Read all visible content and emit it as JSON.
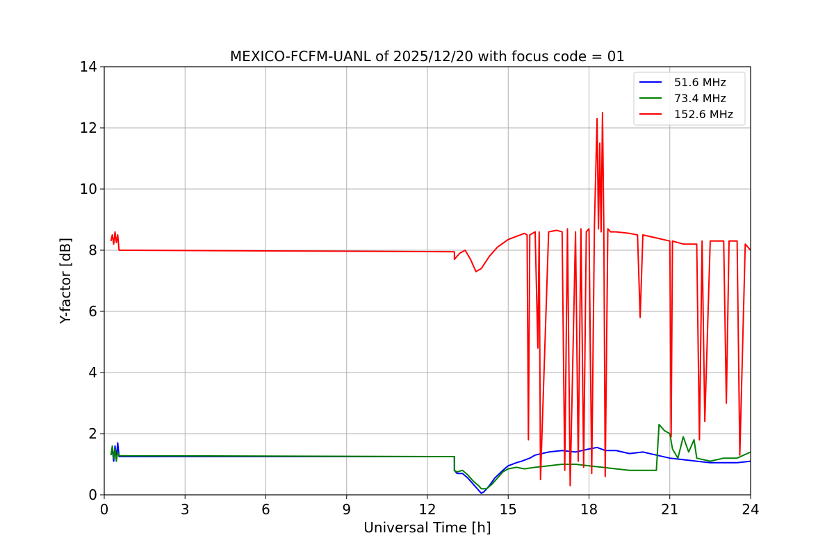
{
  "chart_data": {
    "type": "line",
    "title": "MEXICO-FCFM-UANL of 2025/12/20 with focus code = 01",
    "xlabel": "Universal Time [h]",
    "ylabel": "Y-factor [dB]",
    "xlim": [
      0,
      24
    ],
    "ylim": [
      0,
      14
    ],
    "xticks": [
      0,
      3,
      6,
      9,
      12,
      15,
      18,
      21,
      24
    ],
    "yticks": [
      0,
      2,
      4,
      6,
      8,
      10,
      12,
      14
    ],
    "xtick_labels": [
      "0",
      "3",
      "6",
      "9",
      "12",
      "15",
      "18",
      "21",
      "24"
    ],
    "ytick_labels": [
      "0",
      "2",
      "4",
      "6",
      "8",
      "10",
      "12",
      "14"
    ],
    "grid": true,
    "legend_position": "top-right",
    "series": [
      {
        "name": " 51.6 MHz",
        "color": "#0000ff",
        "x": [
          0.25,
          0.3,
          0.35,
          0.4,
          0.45,
          0.5,
          0.55,
          13.0,
          13.0,
          13.1,
          13.3,
          13.5,
          13.7,
          13.9,
          14.0,
          14.1,
          14.3,
          14.5,
          14.8,
          15.0,
          15.3,
          15.5,
          15.8,
          16.0,
          16.5,
          17.0,
          17.5,
          18.0,
          18.3,
          18.6,
          19.0,
          19.5,
          20.0,
          20.5,
          21.0,
          21.5,
          22.0,
          22.5,
          23.0,
          23.5,
          24.0
        ],
        "y": [
          1.3,
          1.5,
          1.1,
          1.6,
          1.2,
          1.7,
          1.25,
          1.25,
          0.8,
          0.7,
          0.7,
          0.55,
          0.35,
          0.15,
          0.05,
          0.1,
          0.3,
          0.55,
          0.8,
          0.95,
          1.05,
          1.1,
          1.2,
          1.3,
          1.4,
          1.45,
          1.4,
          1.5,
          1.55,
          1.45,
          1.45,
          1.35,
          1.4,
          1.3,
          1.2,
          1.15,
          1.1,
          1.05,
          1.05,
          1.05,
          1.1
        ]
      },
      {
        "name": " 73.4 MHz",
        "color": "#008000",
        "x": [
          0.25,
          0.3,
          0.35,
          0.4,
          0.45,
          0.5,
          0.55,
          13.0,
          13.0,
          13.1,
          13.3,
          13.5,
          13.7,
          13.9,
          14.0,
          14.2,
          14.4,
          14.6,
          14.8,
          15.0,
          15.3,
          15.6,
          16.0,
          16.5,
          17.0,
          17.5,
          18.0,
          18.5,
          19.0,
          19.5,
          20.0,
          20.5,
          20.6,
          20.8,
          21.0,
          21.1,
          21.3,
          21.5,
          21.7,
          21.9,
          22.0,
          22.5,
          23.0,
          23.5,
          24.0
        ],
        "y": [
          1.3,
          1.6,
          1.2,
          1.5,
          1.1,
          1.4,
          1.28,
          1.25,
          0.8,
          0.75,
          0.8,
          0.65,
          0.45,
          0.3,
          0.2,
          0.2,
          0.35,
          0.55,
          0.75,
          0.85,
          0.9,
          0.85,
          0.9,
          0.95,
          1.0,
          1.0,
          0.95,
          0.9,
          0.85,
          0.8,
          0.8,
          0.8,
          2.3,
          2.1,
          2.0,
          1.5,
          1.2,
          1.9,
          1.4,
          1.8,
          1.2,
          1.1,
          1.2,
          1.2,
          1.4
        ]
      },
      {
        "name": "152.6 MHz",
        "color": "#ff0000",
        "x": [
          0.25,
          0.3,
          0.35,
          0.4,
          0.45,
          0.5,
          0.55,
          13.0,
          13.0,
          13.2,
          13.4,
          13.6,
          13.8,
          14.0,
          14.3,
          14.6,
          15.0,
          15.3,
          15.6,
          15.7,
          15.75,
          15.8,
          16.0,
          16.1,
          16.15,
          16.2,
          16.5,
          16.8,
          17.0,
          17.1,
          17.2,
          17.3,
          17.5,
          17.6,
          17.7,
          17.8,
          17.9,
          18.0,
          18.1,
          18.2,
          18.3,
          18.35,
          18.4,
          18.45,
          18.5,
          18.55,
          18.6,
          18.7,
          18.8,
          19.0,
          19.5,
          19.8,
          19.9,
          20.0,
          20.5,
          21.0,
          21.05,
          21.1,
          21.5,
          22.0,
          22.1,
          22.2,
          22.3,
          22.5,
          23.0,
          23.1,
          23.2,
          23.5,
          23.6,
          23.8,
          24.0
        ],
        "y": [
          8.3,
          8.5,
          8.2,
          8.6,
          8.25,
          8.5,
          8.0,
          7.95,
          7.7,
          7.9,
          8.0,
          7.7,
          7.3,
          7.4,
          7.8,
          8.1,
          8.35,
          8.45,
          8.55,
          8.5,
          1.8,
          8.5,
          8.6,
          4.8,
          8.6,
          0.5,
          8.6,
          8.65,
          8.6,
          0.8,
          8.7,
          0.3,
          8.6,
          1.1,
          8.7,
          0.9,
          8.6,
          8.7,
          0.7,
          8.8,
          12.3,
          8.7,
          11.5,
          8.6,
          12.5,
          8.8,
          0.6,
          8.7,
          8.6,
          8.6,
          8.55,
          8.5,
          5.8,
          8.5,
          8.4,
          8.3,
          1.9,
          8.3,
          8.2,
          8.2,
          1.8,
          8.3,
          2.4,
          8.3,
          8.3,
          3.0,
          8.3,
          8.3,
          1.3,
          8.2,
          8.0
        ]
      }
    ]
  }
}
